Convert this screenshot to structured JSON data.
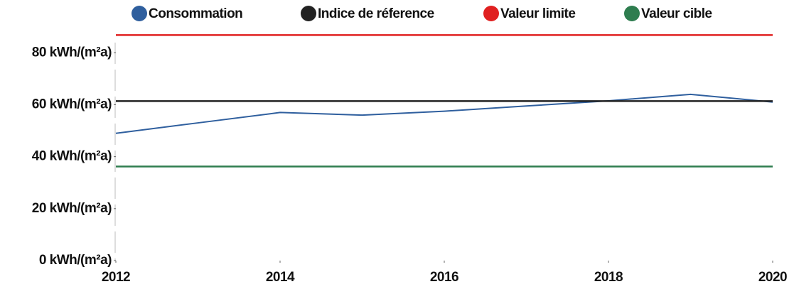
{
  "chart_data": {
    "type": "line",
    "x": [
      2012,
      2013,
      2014,
      2015,
      2016,
      2017,
      2018,
      2019,
      2020
    ],
    "series": [
      {
        "name": "Consommation",
        "color": "#2f5f9e",
        "values": [
          49,
          53,
          57,
          56,
          57.5,
          59.5,
          61.5,
          64,
          61
        ]
      },
      {
        "name": "Indice de réference",
        "color": "#222222",
        "values": [
          61.4,
          61.4,
          61.4,
          61.4,
          61.4,
          61.4,
          61.4,
          61.4,
          61.4
        ]
      },
      {
        "name": "Valeur limite",
        "color": "#e02020",
        "values": [
          86.8,
          86.8,
          86.8,
          86.8,
          86.8,
          86.8,
          86.8,
          86.8,
          86.8
        ]
      },
      {
        "name": "Valeur cible",
        "color": "#2e7d4f",
        "values": [
          36.2,
          36.2,
          36.2,
          36.2,
          36.2,
          36.2,
          36.2,
          36.2,
          36.2
        ]
      }
    ],
    "xlim": [
      2012,
      2020
    ],
    "xticks": [
      2012,
      2014,
      2016,
      2018,
      2020
    ],
    "ylim": [
      0,
      88
    ],
    "yticks": [
      {
        "value": 0,
        "label": "0 kWh/(m²a)"
      },
      {
        "value": 20,
        "label": "20 kWh/(m²a)"
      },
      {
        "value": 40,
        "label": "40 kWh/(m²a)"
      },
      {
        "value": 60,
        "label": "60 kWh/(m²a)"
      },
      {
        "value": 80,
        "label": "80 kWh/(m²a)"
      }
    ]
  }
}
